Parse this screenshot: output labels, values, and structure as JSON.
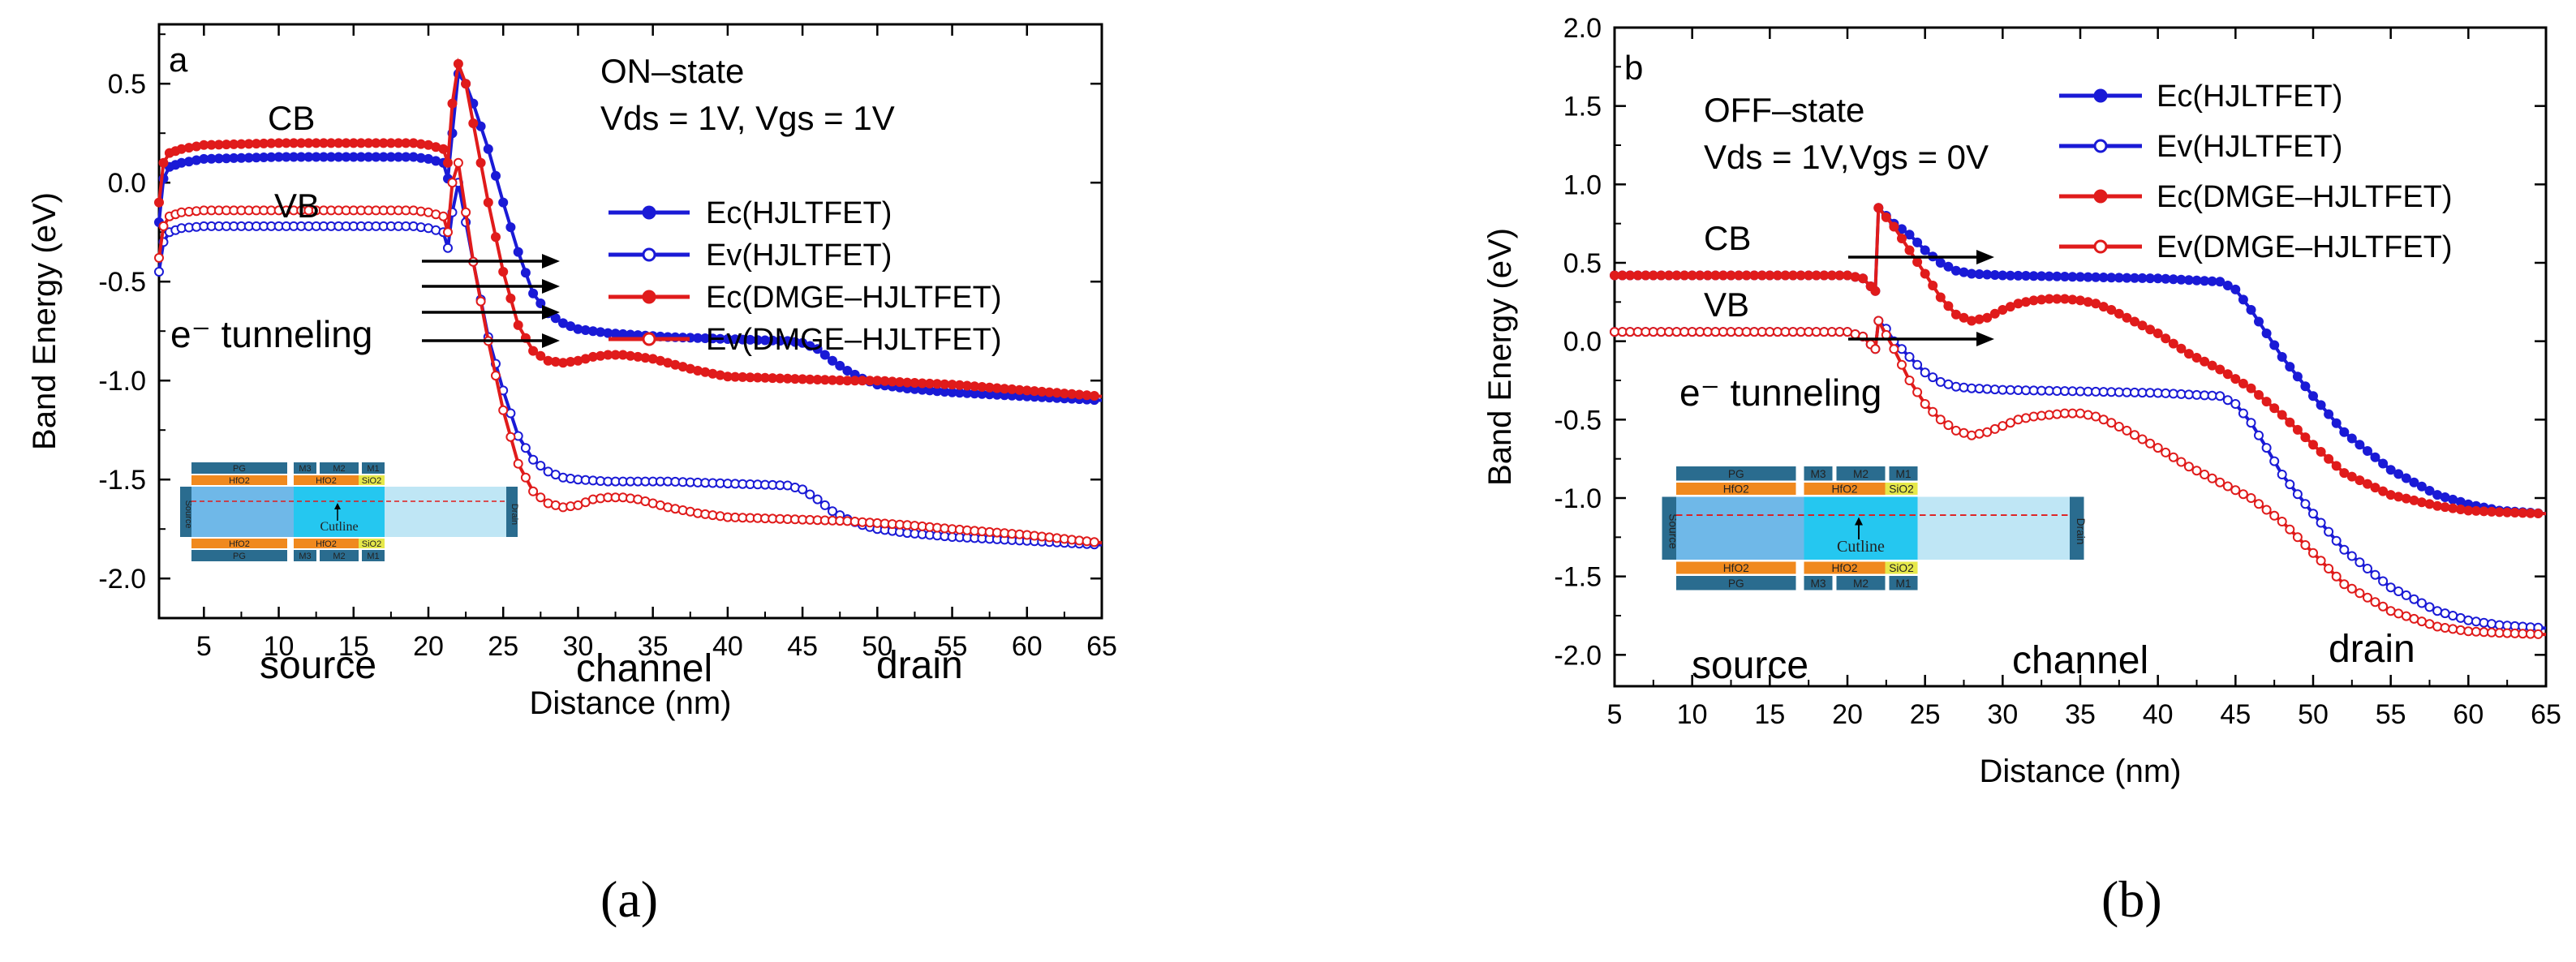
{
  "chart_data": [
    {
      "type": "line",
      "panel_label": "a",
      "caption": "(a)",
      "state_title": "ON–state",
      "bias_text": "Vds = 1V, Vgs = 1V",
      "xlabel": "Distance (nm)",
      "ylabel": "Band Energy (eV)",
      "xlim": [
        2,
        65
      ],
      "ylim": [
        -2.2,
        0.8
      ],
      "xticks": [
        "5",
        "10",
        "15",
        "20",
        "25",
        "30",
        "35",
        "40",
        "45",
        "50",
        "55",
        "60",
        "65"
      ],
      "yticks": [
        "0.5",
        "0.0",
        "-0.5",
        "-1.0",
        "-1.5",
        "-2.0"
      ],
      "labels": {
        "cb": "CB",
        "vb": "VB",
        "tunneling": "e⁻ tunneling",
        "source": "source",
        "channel": "channel",
        "drain": "drain"
      },
      "series": [
        {
          "name": "Ec(HJLTFET)",
          "color": "#1a1ad6",
          "marker": "filled",
          "x": [
            2,
            2.3,
            2.7,
            3.5,
            5,
            10,
            15,
            19,
            20,
            21,
            21.3,
            21.6,
            22,
            22.5,
            23,
            24,
            25,
            26,
            27,
            28,
            29,
            30,
            32,
            34,
            36,
            40,
            44,
            45,
            46,
            47,
            48,
            49,
            50,
            52,
            55,
            60,
            65
          ],
          "y": [
            -0.2,
            0.02,
            0.08,
            0.1,
            0.12,
            0.13,
            0.13,
            0.13,
            0.12,
            0.1,
            0.02,
            0.25,
            0.55,
            0.5,
            0.4,
            0.17,
            -0.1,
            -0.35,
            -0.56,
            -0.66,
            -0.71,
            -0.74,
            -0.76,
            -0.77,
            -0.78,
            -0.79,
            -0.8,
            -0.81,
            -0.84,
            -0.9,
            -0.95,
            -0.99,
            -1.02,
            -1.04,
            -1.06,
            -1.08,
            -1.1
          ]
        },
        {
          "name": "Ev(HJLTFET)",
          "color": "#1a1ad6",
          "marker": "open",
          "x": [
            2,
            2.3,
            2.7,
            3.5,
            5,
            10,
            15,
            19,
            20,
            21,
            21.3,
            21.6,
            22,
            22.5,
            23,
            24,
            25,
            26,
            27,
            28,
            29,
            30,
            32,
            34,
            36,
            40,
            44,
            45,
            46,
            47,
            48,
            49,
            50,
            52,
            55,
            60,
            65
          ],
          "y": [
            -0.45,
            -0.3,
            -0.25,
            -0.23,
            -0.22,
            -0.22,
            -0.22,
            -0.22,
            -0.23,
            -0.25,
            -0.33,
            -0.15,
            0.0,
            -0.2,
            -0.4,
            -0.78,
            -1.05,
            -1.28,
            -1.4,
            -1.46,
            -1.49,
            -1.5,
            -1.51,
            -1.51,
            -1.51,
            -1.52,
            -1.53,
            -1.55,
            -1.6,
            -1.66,
            -1.7,
            -1.73,
            -1.75,
            -1.77,
            -1.79,
            -1.81,
            -1.83
          ]
        },
        {
          "name": "Ec(DMGE–HJLTFET)",
          "color": "#e01b1b",
          "marker": "filled",
          "x": [
            2,
            2.3,
            2.7,
            3.5,
            5,
            10,
            15,
            19,
            20,
            21,
            21.3,
            21.6,
            22,
            22.5,
            23,
            24,
            25,
            26,
            27,
            28,
            29,
            30,
            31,
            32,
            33,
            34,
            35,
            36,
            38,
            40,
            44,
            48,
            50,
            52,
            55,
            60,
            65
          ],
          "y": [
            -0.1,
            0.1,
            0.15,
            0.17,
            0.19,
            0.2,
            0.2,
            0.2,
            0.19,
            0.17,
            0.1,
            0.4,
            0.6,
            0.5,
            0.3,
            -0.1,
            -0.45,
            -0.72,
            -0.85,
            -0.9,
            -0.91,
            -0.9,
            -0.88,
            -0.87,
            -0.87,
            -0.88,
            -0.89,
            -0.91,
            -0.95,
            -0.98,
            -0.99,
            -1.0,
            -1.0,
            -1.01,
            -1.02,
            -1.05,
            -1.08
          ]
        },
        {
          "name": "Ev(DMGE–HJLTFET)",
          "color": "#e01b1b",
          "marker": "open",
          "x": [
            2,
            2.3,
            2.7,
            3.5,
            5,
            10,
            15,
            19,
            20,
            21,
            21.3,
            21.6,
            22,
            22.5,
            23,
            24,
            25,
            26,
            27,
            28,
            29,
            30,
            31,
            32,
            33,
            34,
            35,
            36,
            38,
            40,
            44,
            48,
            50,
            52,
            55,
            60,
            65
          ],
          "y": [
            -0.38,
            -0.22,
            -0.17,
            -0.15,
            -0.14,
            -0.14,
            -0.14,
            -0.14,
            -0.15,
            -0.17,
            -0.25,
            0.0,
            0.1,
            -0.15,
            -0.4,
            -0.8,
            -1.15,
            -1.42,
            -1.56,
            -1.62,
            -1.64,
            -1.63,
            -1.6,
            -1.59,
            -1.59,
            -1.6,
            -1.62,
            -1.64,
            -1.67,
            -1.69,
            -1.7,
            -1.71,
            -1.72,
            -1.73,
            -1.75,
            -1.78,
            -1.82
          ]
        }
      ]
    },
    {
      "type": "line",
      "panel_label": "b",
      "caption": "(b)",
      "state_title": "OFF–state",
      "bias_text": "Vds = 1V,Vgs = 0V",
      "xlabel": "Distance (nm)",
      "ylabel": "Band Energy (eV)",
      "xlim": [
        5,
        65
      ],
      "ylim": [
        -2.2,
        2.0
      ],
      "xticks": [
        "5",
        "10",
        "15",
        "20",
        "25",
        "30",
        "35",
        "40",
        "45",
        "50",
        "55",
        "60",
        "65"
      ],
      "yticks": [
        "2.0",
        "1.5",
        "1.0",
        "0.5",
        "0.0",
        "-0.5",
        "-1.0",
        "-1.5",
        "-2.0"
      ],
      "labels": {
        "cb": "CB",
        "vb": "VB",
        "tunneling": "e⁻ tunneling",
        "source": "source",
        "channel": "channel",
        "drain": "drain"
      },
      "series": [
        {
          "name": "Ec(HJLTFET)",
          "color": "#1a1ad6",
          "marker": "filled",
          "x": [
            5,
            10,
            15,
            20,
            21,
            21.5,
            21.8,
            22,
            22.5,
            23,
            24,
            25,
            26,
            27,
            28,
            30,
            35,
            40,
            44,
            45,
            46,
            47,
            48,
            50,
            52,
            55,
            58,
            60,
            62,
            65
          ],
          "y": [
            0.42,
            0.42,
            0.42,
            0.42,
            0.4,
            0.35,
            0.32,
            0.85,
            0.8,
            0.75,
            0.68,
            0.58,
            0.5,
            0.45,
            0.43,
            0.42,
            0.41,
            0.4,
            0.38,
            0.33,
            0.2,
            0.05,
            -0.1,
            -0.35,
            -0.58,
            -0.82,
            -0.98,
            -1.04,
            -1.08,
            -1.1
          ]
        },
        {
          "name": "Ev(HJLTFET)",
          "color": "#1a1ad6",
          "marker": "open",
          "x": [
            5,
            10,
            15,
            20,
            21,
            21.5,
            21.8,
            22,
            22.5,
            23,
            24,
            25,
            26,
            27,
            28,
            30,
            35,
            40,
            44,
            45,
            46,
            47,
            48,
            50,
            52,
            55,
            58,
            60,
            62,
            65
          ],
          "y": [
            0.06,
            0.06,
            0.06,
            0.06,
            0.03,
            -0.02,
            -0.05,
            0.13,
            0.08,
            0.0,
            -0.1,
            -0.2,
            -0.26,
            -0.29,
            -0.3,
            -0.31,
            -0.32,
            -0.33,
            -0.35,
            -0.4,
            -0.52,
            -0.68,
            -0.85,
            -1.1,
            -1.33,
            -1.57,
            -1.72,
            -1.78,
            -1.81,
            -1.83
          ]
        },
        {
          "name": "Ec(DMGE–HJLTFET)",
          "color": "#e01b1b",
          "marker": "filled",
          "x": [
            5,
            10,
            15,
            20,
            21,
            21.5,
            21.8,
            22,
            23,
            24,
            25,
            26,
            27,
            28,
            29,
            30,
            31,
            32,
            33,
            34,
            35,
            36,
            37,
            38,
            40,
            42,
            44,
            46,
            48,
            50,
            52,
            55,
            58,
            60,
            62,
            65
          ],
          "y": [
            0.42,
            0.42,
            0.42,
            0.42,
            0.4,
            0.35,
            0.32,
            0.85,
            0.73,
            0.58,
            0.43,
            0.28,
            0.17,
            0.13,
            0.15,
            0.2,
            0.24,
            0.26,
            0.27,
            0.27,
            0.26,
            0.24,
            0.2,
            0.15,
            0.05,
            -0.08,
            -0.18,
            -0.3,
            -0.47,
            -0.66,
            -0.84,
            -0.98,
            -1.05,
            -1.08,
            -1.09,
            -1.1
          ]
        },
        {
          "name": "Ev(DMGE–HJLTFET)",
          "color": "#e01b1b",
          "marker": "open",
          "x": [
            5,
            10,
            15,
            20,
            21,
            21.5,
            21.8,
            22,
            23,
            24,
            25,
            26,
            27,
            28,
            29,
            30,
            31,
            32,
            33,
            34,
            35,
            36,
            37,
            38,
            40,
            42,
            44,
            46,
            48,
            50,
            52,
            55,
            58,
            60,
            62,
            65
          ],
          "y": [
            0.06,
            0.06,
            0.06,
            0.06,
            0.03,
            -0.02,
            -0.05,
            0.13,
            -0.05,
            -0.25,
            -0.4,
            -0.5,
            -0.57,
            -0.6,
            -0.58,
            -0.54,
            -0.5,
            -0.48,
            -0.47,
            -0.46,
            -0.46,
            -0.48,
            -0.52,
            -0.57,
            -0.68,
            -0.8,
            -0.9,
            -1.0,
            -1.15,
            -1.35,
            -1.55,
            -1.72,
            -1.82,
            -1.85,
            -1.86,
            -1.87
          ]
        }
      ]
    }
  ],
  "device_labels": {
    "gate_pg": "PG",
    "gate_m3": "M3",
    "gate_m2": "M2",
    "gate_m1": "M1",
    "oxide_hfo2": "HfO2",
    "oxide_sio2": "SiO2",
    "source": "Source",
    "drain": "Drain",
    "cutline": "Cutline"
  }
}
